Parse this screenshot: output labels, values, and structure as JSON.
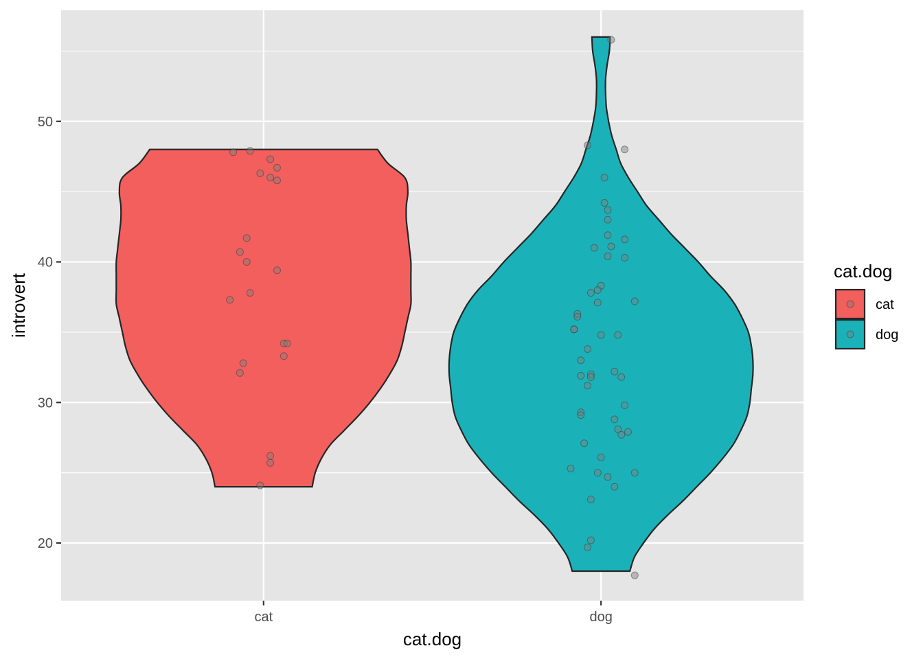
{
  "chart_data": {
    "type": "violin",
    "xlabel": "cat.dog",
    "ylabel": "introvert",
    "categories": [
      "cat",
      "dog"
    ],
    "ylim": [
      15.9,
      57.9
    ],
    "y_ticks": [
      20,
      30,
      40,
      50
    ],
    "y_minor_ticks": [
      25,
      35,
      45,
      55
    ],
    "grid": true,
    "legend": {
      "title": "cat.dog",
      "position": "right",
      "entries": [
        {
          "label": "cat",
          "color": "#F25F5C"
        },
        {
          "label": "dog",
          "color": "#1AB2B8"
        }
      ]
    },
    "violins": [
      {
        "category": "cat",
        "color": "#F25F5C",
        "ymin": 24,
        "ymax": 48,
        "density_profile": [
          [
            24,
            0.32
          ],
          [
            25,
            0.34
          ],
          [
            26,
            0.38
          ],
          [
            27,
            0.44
          ],
          [
            28,
            0.53
          ],
          [
            29,
            0.62
          ],
          [
            30,
            0.7
          ],
          [
            31,
            0.77
          ],
          [
            32,
            0.83
          ],
          [
            33,
            0.88
          ],
          [
            34,
            0.91
          ],
          [
            35,
            0.93
          ],
          [
            36,
            0.95
          ],
          [
            37,
            0.97
          ],
          [
            38,
            0.97
          ],
          [
            39,
            0.97
          ],
          [
            40,
            0.97
          ],
          [
            41,
            0.96
          ],
          [
            42,
            0.95
          ],
          [
            43,
            0.94
          ],
          [
            44,
            0.94
          ],
          [
            45,
            0.95
          ],
          [
            46,
            0.93
          ],
          [
            47,
            0.82
          ],
          [
            48,
            0.75
          ]
        ],
        "points": [
          [
            -0.09,
            47.8
          ],
          [
            -0.04,
            47.9
          ],
          [
            0.02,
            47.3
          ],
          [
            0.04,
            46.7
          ],
          [
            -0.01,
            46.3
          ],
          [
            0.02,
            46.0
          ],
          [
            0.04,
            45.8
          ],
          [
            -0.05,
            41.7
          ],
          [
            -0.07,
            40.7
          ],
          [
            -0.05,
            40.0
          ],
          [
            0.04,
            39.4
          ],
          [
            -0.1,
            37.3
          ],
          [
            -0.04,
            37.8
          ],
          [
            0.06,
            34.2
          ],
          [
            0.07,
            34.2
          ],
          [
            -0.06,
            32.8
          ],
          [
            0.06,
            33.3
          ],
          [
            -0.07,
            32.1
          ],
          [
            0.02,
            26.2
          ],
          [
            0.02,
            25.7
          ],
          [
            -0.01,
            24.1
          ]
        ]
      },
      {
        "category": "dog",
        "color": "#1AB2B8",
        "ymin": 18,
        "ymax": 56,
        "density_profile": [
          [
            18,
            0.19
          ],
          [
            19,
            0.22
          ],
          [
            20,
            0.28
          ],
          [
            21,
            0.35
          ],
          [
            22,
            0.44
          ],
          [
            23,
            0.54
          ],
          [
            24,
            0.63
          ],
          [
            25,
            0.72
          ],
          [
            26,
            0.8
          ],
          [
            27,
            0.87
          ],
          [
            28,
            0.92
          ],
          [
            29,
            0.96
          ],
          [
            30,
            0.98
          ],
          [
            31,
            0.99
          ],
          [
            32,
            1.0
          ],
          [
            33,
            1.0
          ],
          [
            34,
            0.99
          ],
          [
            35,
            0.97
          ],
          [
            36,
            0.93
          ],
          [
            37,
            0.88
          ],
          [
            38,
            0.81
          ],
          [
            39,
            0.72
          ],
          [
            40,
            0.64
          ],
          [
            41,
            0.55
          ],
          [
            42,
            0.46
          ],
          [
            43,
            0.38
          ],
          [
            44,
            0.3
          ],
          [
            45,
            0.24
          ],
          [
            46,
            0.18
          ],
          [
            47,
            0.13
          ],
          [
            48,
            0.1
          ],
          [
            49,
            0.07
          ],
          [
            50,
            0.05
          ],
          [
            51,
            0.035
          ],
          [
            52,
            0.03
          ],
          [
            53,
            0.03
          ],
          [
            54,
            0.04
          ],
          [
            55,
            0.055
          ],
          [
            56,
            0.06
          ]
        ],
        "points": [
          [
            0.03,
            55.8
          ],
          [
            -0.04,
            48.3
          ],
          [
            0.07,
            48.0
          ],
          [
            0.01,
            46.0
          ],
          [
            0.01,
            44.2
          ],
          [
            0.02,
            43.7
          ],
          [
            0.02,
            43.0
          ],
          [
            0.02,
            41.9
          ],
          [
            0.03,
            41.1
          ],
          [
            -0.02,
            41.0
          ],
          [
            0.07,
            41.6
          ],
          [
            0.02,
            40.4
          ],
          [
            0.07,
            40.3
          ],
          [
            0.0,
            38.3
          ],
          [
            -0.01,
            38.0
          ],
          [
            -0.03,
            37.8
          ],
          [
            -0.01,
            37.1
          ],
          [
            0.1,
            37.2
          ],
          [
            -0.07,
            36.3
          ],
          [
            -0.07,
            36.1
          ],
          [
            -0.08,
            35.2
          ],
          [
            -0.08,
            35.2
          ],
          [
            0.0,
            34.8
          ],
          [
            0.05,
            34.8
          ],
          [
            -0.04,
            33.8
          ],
          [
            -0.06,
            33.0
          ],
          [
            0.04,
            32.2
          ],
          [
            -0.03,
            32.0
          ],
          [
            -0.06,
            31.9
          ],
          [
            -0.03,
            31.8
          ],
          [
            0.06,
            31.8
          ],
          [
            -0.04,
            31.2
          ],
          [
            0.07,
            29.8
          ],
          [
            -0.06,
            29.3
          ],
          [
            -0.06,
            29.1
          ],
          [
            0.04,
            28.8
          ],
          [
            0.05,
            28.1
          ],
          [
            0.06,
            27.7
          ],
          [
            0.08,
            27.9
          ],
          [
            -0.05,
            27.1
          ],
          [
            0.0,
            26.1
          ],
          [
            -0.09,
            25.3
          ],
          [
            -0.01,
            25.0
          ],
          [
            0.1,
            25.0
          ],
          [
            0.02,
            24.7
          ],
          [
            0.04,
            24.0
          ],
          [
            -0.03,
            23.1
          ],
          [
            -0.03,
            20.2
          ],
          [
            -0.04,
            19.7
          ],
          [
            0.1,
            17.7
          ]
        ]
      }
    ]
  }
}
